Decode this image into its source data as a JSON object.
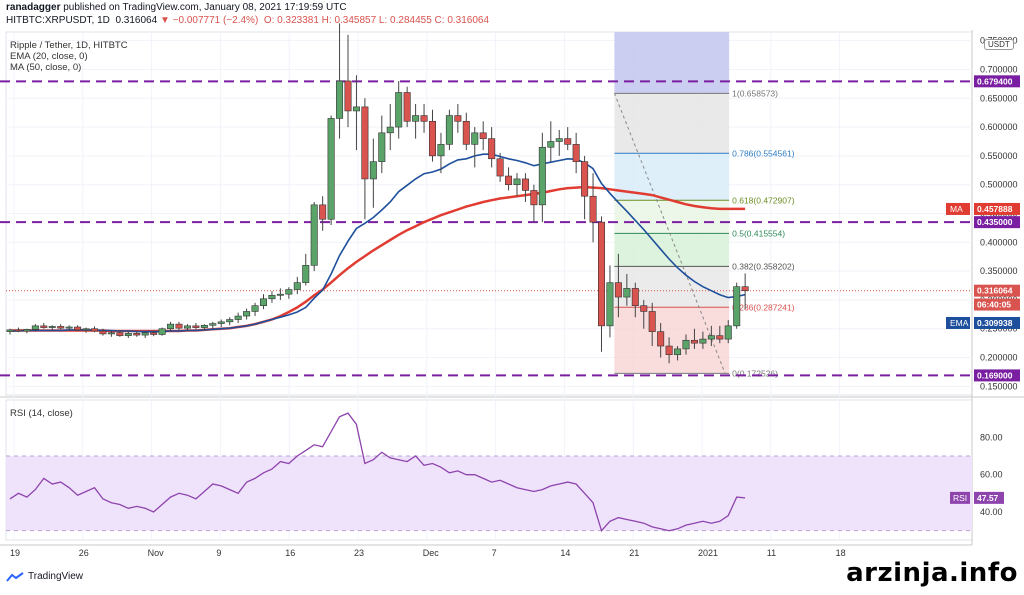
{
  "header": {
    "line1_user": "ranadagger",
    "line1_rest": " published on TradingView.com, January 08, 2021 17:19:59 UTC",
    "symbol": "HITBTC:XRPUSDT, 1D",
    "last": "0.316064",
    "change": "−0.007771 (−2.4%)",
    "ohlc": "O: 0.323381  H: 0.345857  L: 0.284455  C: 0.316064"
  },
  "legend": {
    "title": "Ripple / Tether, 1D, HITBTC",
    "ema": "EMA (20, close, 0)",
    "ma": "MA (50, close, 0)",
    "currency": "USDT",
    "rsi": "RSI (14, close)"
  },
  "branding": {
    "tv_name": "TradingView",
    "watermark": "arzinja.info"
  },
  "colors": {
    "up": "#5aa469",
    "down": "#d9534f",
    "ema": "#1e4f9c",
    "ma": "#e03c31",
    "dash": "#7b1fa2",
    "rsi": "#8e44ad",
    "rsi_band": "#efe2fb"
  },
  "chart_data": {
    "type": "candlestick",
    "price_axis": {
      "ticks": [
        "0.750000",
        "0.700000",
        "0.650000",
        "0.600000",
        "0.550000",
        "0.500000",
        "0.450000",
        "0.400000",
        "0.350000",
        "0.300000",
        "0.250000",
        "0.200000",
        "0.150000"
      ],
      "range": [
        0.135,
        0.765
      ]
    },
    "time_axis": [
      "19",
      "26",
      "Nov",
      "9",
      "16",
      "23",
      "Dec",
      "7",
      "14",
      "21",
      "2021",
      "11",
      "18"
    ],
    "candles": [
      [
        0.245,
        0.25,
        0.24,
        0.248
      ],
      [
        0.248,
        0.252,
        0.244,
        0.246
      ],
      [
        0.246,
        0.25,
        0.242,
        0.249
      ],
      [
        0.249,
        0.258,
        0.245,
        0.255
      ],
      [
        0.255,
        0.26,
        0.25,
        0.252
      ],
      [
        0.252,
        0.256,
        0.247,
        0.254
      ],
      [
        0.254,
        0.258,
        0.249,
        0.251
      ],
      [
        0.251,
        0.256,
        0.247,
        0.253
      ],
      [
        0.253,
        0.256,
        0.246,
        0.248
      ],
      [
        0.248,
        0.252,
        0.243,
        0.25
      ],
      [
        0.25,
        0.254,
        0.244,
        0.246
      ],
      [
        0.246,
        0.25,
        0.238,
        0.241
      ],
      [
        0.241,
        0.246,
        0.236,
        0.243
      ],
      [
        0.243,
        0.247,
        0.236,
        0.238
      ],
      [
        0.238,
        0.245,
        0.234,
        0.242
      ],
      [
        0.242,
        0.246,
        0.236,
        0.239
      ],
      [
        0.239,
        0.245,
        0.234,
        0.243
      ],
      [
        0.243,
        0.247,
        0.237,
        0.24
      ],
      [
        0.24,
        0.252,
        0.238,
        0.25
      ],
      [
        0.25,
        0.262,
        0.245,
        0.258
      ],
      [
        0.258,
        0.262,
        0.248,
        0.251
      ],
      [
        0.251,
        0.258,
        0.246,
        0.255
      ],
      [
        0.255,
        0.26,
        0.249,
        0.252
      ],
      [
        0.252,
        0.258,
        0.247,
        0.256
      ],
      [
        0.256,
        0.262,
        0.25,
        0.259
      ],
      [
        0.259,
        0.266,
        0.253,
        0.262
      ],
      [
        0.262,
        0.27,
        0.256,
        0.266
      ],
      [
        0.266,
        0.278,
        0.26,
        0.272
      ],
      [
        0.272,
        0.285,
        0.266,
        0.28
      ],
      [
        0.28,
        0.295,
        0.272,
        0.29
      ],
      [
        0.29,
        0.31,
        0.284,
        0.302
      ],
      [
        0.302,
        0.315,
        0.295,
        0.308
      ],
      [
        0.308,
        0.32,
        0.3,
        0.31
      ],
      [
        0.31,
        0.322,
        0.302,
        0.318
      ],
      [
        0.318,
        0.34,
        0.31,
        0.33
      ],
      [
        0.33,
        0.38,
        0.325,
        0.36
      ],
      [
        0.36,
        0.47,
        0.35,
        0.465
      ],
      [
        0.465,
        0.48,
        0.42,
        0.44
      ],
      [
        0.44,
        0.62,
        0.43,
        0.615
      ],
      [
        0.615,
        0.78,
        0.58,
        0.68
      ],
      [
        0.68,
        0.76,
        0.6,
        0.628
      ],
      [
        0.628,
        0.69,
        0.56,
        0.635
      ],
      [
        0.635,
        0.65,
        0.44,
        0.51
      ],
      [
        0.51,
        0.58,
        0.46,
        0.54
      ],
      [
        0.54,
        0.62,
        0.52,
        0.59
      ],
      [
        0.59,
        0.64,
        0.56,
        0.6
      ],
      [
        0.6,
        0.68,
        0.58,
        0.66
      ],
      [
        0.66,
        0.67,
        0.6,
        0.61
      ],
      [
        0.61,
        0.64,
        0.58,
        0.62
      ],
      [
        0.62,
        0.64,
        0.59,
        0.61
      ],
      [
        0.61,
        0.63,
        0.54,
        0.55
      ],
      [
        0.55,
        0.59,
        0.52,
        0.57
      ],
      [
        0.57,
        0.63,
        0.56,
        0.62
      ],
      [
        0.62,
        0.64,
        0.59,
        0.61
      ],
      [
        0.61,
        0.625,
        0.56,
        0.57
      ],
      [
        0.57,
        0.6,
        0.53,
        0.59
      ],
      [
        0.59,
        0.61,
        0.56,
        0.58
      ],
      [
        0.58,
        0.6,
        0.53,
        0.545
      ],
      [
        0.545,
        0.555,
        0.505,
        0.515
      ],
      [
        0.515,
        0.53,
        0.49,
        0.5
      ],
      [
        0.5,
        0.52,
        0.48,
        0.51
      ],
      [
        0.51,
        0.52,
        0.47,
        0.49
      ],
      [
        0.49,
        0.5,
        0.435,
        0.465
      ],
      [
        0.465,
        0.59,
        0.435,
        0.565
      ],
      [
        0.565,
        0.61,
        0.54,
        0.575
      ],
      [
        0.575,
        0.595,
        0.55,
        0.58
      ],
      [
        0.58,
        0.6,
        0.56,
        0.57
      ],
      [
        0.57,
        0.59,
        0.52,
        0.54
      ],
      [
        0.54,
        0.55,
        0.44,
        0.48
      ],
      [
        0.48,
        0.52,
        0.4,
        0.435
      ],
      [
        0.435,
        0.445,
        0.21,
        0.255
      ],
      [
        0.255,
        0.36,
        0.235,
        0.33
      ],
      [
        0.33,
        0.38,
        0.27,
        0.305
      ],
      [
        0.305,
        0.345,
        0.29,
        0.32
      ],
      [
        0.32,
        0.33,
        0.27,
        0.29
      ],
      [
        0.29,
        0.3,
        0.25,
        0.28
      ],
      [
        0.28,
        0.295,
        0.22,
        0.245
      ],
      [
        0.245,
        0.26,
        0.2,
        0.22
      ],
      [
        0.22,
        0.235,
        0.19,
        0.205
      ],
      [
        0.205,
        0.22,
        0.195,
        0.215
      ],
      [
        0.215,
        0.24,
        0.205,
        0.23
      ],
      [
        0.23,
        0.25,
        0.215,
        0.225
      ],
      [
        0.225,
        0.245,
        0.215,
        0.232
      ],
      [
        0.232,
        0.255,
        0.22,
        0.238
      ],
      [
        0.238,
        0.255,
        0.225,
        0.232
      ],
      [
        0.232,
        0.265,
        0.225,
        0.255
      ],
      [
        0.255,
        0.33,
        0.25,
        0.323
      ],
      [
        0.323,
        0.346,
        0.284,
        0.316
      ]
    ],
    "ema20": [
      0.246,
      0.246,
      0.247,
      0.247,
      0.247,
      0.247,
      0.247,
      0.248,
      0.248,
      0.248,
      0.248,
      0.247,
      0.247,
      0.246,
      0.246,
      0.245,
      0.245,
      0.245,
      0.245,
      0.246,
      0.246,
      0.247,
      0.247,
      0.248,
      0.249,
      0.25,
      0.251,
      0.253,
      0.255,
      0.258,
      0.262,
      0.266,
      0.27,
      0.274,
      0.279,
      0.287,
      0.303,
      0.317,
      0.345,
      0.377,
      0.402,
      0.424,
      0.433,
      0.443,
      0.456,
      0.47,
      0.488,
      0.499,
      0.51,
      0.519,
      0.522,
      0.527,
      0.536,
      0.543,
      0.545,
      0.55,
      0.553,
      0.553,
      0.549,
      0.545,
      0.542,
      0.538,
      0.533,
      0.536,
      0.539,
      0.542,
      0.545,
      0.544,
      0.538,
      0.528,
      0.502,
      0.485,
      0.469,
      0.454,
      0.438,
      0.422,
      0.405,
      0.388,
      0.371,
      0.356,
      0.343,
      0.332,
      0.323,
      0.316,
      0.309,
      0.304,
      0.306,
      0.309
    ],
    "ma50": [
      0.247,
      0.247,
      0.247,
      0.247,
      0.247,
      0.247,
      0.247,
      0.247,
      0.247,
      0.247,
      0.247,
      0.247,
      0.246,
      0.246,
      0.246,
      0.246,
      0.246,
      0.246,
      0.246,
      0.246,
      0.246,
      0.247,
      0.247,
      0.248,
      0.249,
      0.25,
      0.251,
      0.253,
      0.255,
      0.258,
      0.262,
      0.266,
      0.272,
      0.279,
      0.287,
      0.297,
      0.308,
      0.318,
      0.33,
      0.343,
      0.355,
      0.366,
      0.376,
      0.386,
      0.395,
      0.404,
      0.413,
      0.421,
      0.428,
      0.435,
      0.441,
      0.447,
      0.452,
      0.457,
      0.462,
      0.466,
      0.47,
      0.473,
      0.476,
      0.478,
      0.48,
      0.482,
      0.484,
      0.486,
      0.489,
      0.492,
      0.494,
      0.495,
      0.496,
      0.495,
      0.494,
      0.492,
      0.49,
      0.488,
      0.486,
      0.484,
      0.482,
      0.478,
      0.474,
      0.47,
      0.466,
      0.463,
      0.461,
      0.459,
      0.458,
      0.458,
      0.458,
      0.458
    ],
    "levels": [
      {
        "price": 0.6794,
        "label": "0.679400"
      },
      {
        "price": 0.435,
        "label": "0.435000"
      },
      {
        "price": 0.169,
        "label": "0.169000"
      }
    ],
    "fib": {
      "levels": [
        {
          "ratio": "1",
          "price": 0.658573,
          "label": "1(0.658573)",
          "fill": "#e4e4e4",
          "color": "#777"
        },
        {
          "ratio": "0.786",
          "price": 0.554561,
          "label": "0.786(0.554561)",
          "fill": "#d6ebf9",
          "color": "#2d7cc1"
        },
        {
          "ratio": "0.618",
          "price": 0.472907,
          "label": "0.618(0.472907)",
          "fill": "#e8f5e4",
          "color": "#6b8e23"
        },
        {
          "ratio": "0.5",
          "price": 0.415554,
          "label": "0.5(0.415554)",
          "fill": "#d4f0d4",
          "color": "#2e8b57"
        },
        {
          "ratio": "0.382",
          "price": 0.358202,
          "label": "0.382(0.358202)",
          "fill": "#e6e6e6",
          "color": "#555"
        },
        {
          "ratio": "0.236",
          "price": 0.287241,
          "label": "0.236(0.287241)",
          "fill": "#f7d3d3",
          "color": "#d9534f"
        },
        {
          "ratio": "0",
          "price": 0.172526,
          "label": "0(0.172526)",
          "fill": "#f7d3d3",
          "color": "#777"
        }
      ],
      "highlight_top_price": 0.765
    },
    "price_tags": [
      {
        "label": "0.679400",
        "price": 0.6794,
        "bg": "#7b1fa2",
        "fg": "#fff"
      },
      {
        "label": "0.457888",
        "price": 0.457888,
        "bg": "#e03c31",
        "fg": "#fff",
        "prefix": "MA"
      },
      {
        "label": "0.435000",
        "price": 0.435,
        "bg": "#7b1fa2",
        "fg": "#fff"
      },
      {
        "label": "0.316064",
        "price": 0.316064,
        "bg": "#d9534f",
        "fg": "#fff"
      },
      {
        "label": "06:40:05",
        "price": 0.292,
        "bg": "#d9534f",
        "fg": "#fff"
      },
      {
        "label": "0.309938",
        "price": 0.26,
        "bg": "#1e4f9c",
        "fg": "#fff",
        "prefix": "EMA"
      },
      {
        "label": "0.169000",
        "price": 0.169,
        "bg": "#7b1fa2",
        "fg": "#fff"
      }
    ],
    "rsi": {
      "ticks": [
        "80.00",
        "60.00",
        "40.00"
      ],
      "range": [
        25,
        100
      ],
      "band": [
        30,
        70
      ],
      "last_label": "47.57",
      "values": [
        47,
        50,
        48,
        52,
        58,
        55,
        56,
        53,
        49,
        51,
        53,
        47,
        45,
        44,
        42,
        43,
        42,
        40,
        44,
        48,
        50,
        49,
        47,
        51,
        55,
        54,
        52,
        50,
        56,
        58,
        61,
        63,
        67,
        66,
        70,
        73,
        76,
        75,
        83,
        91,
        93,
        87,
        66,
        68,
        72,
        69,
        68,
        67,
        70,
        65,
        66,
        64,
        61,
        62,
        60,
        60,
        58,
        56,
        57,
        55,
        53,
        52,
        51,
        52,
        54,
        55,
        56,
        55,
        50,
        45,
        30,
        35,
        37,
        36,
        35,
        34,
        32,
        31,
        30,
        31,
        33,
        34,
        35,
        34,
        35,
        38,
        48,
        47.57
      ]
    }
  }
}
